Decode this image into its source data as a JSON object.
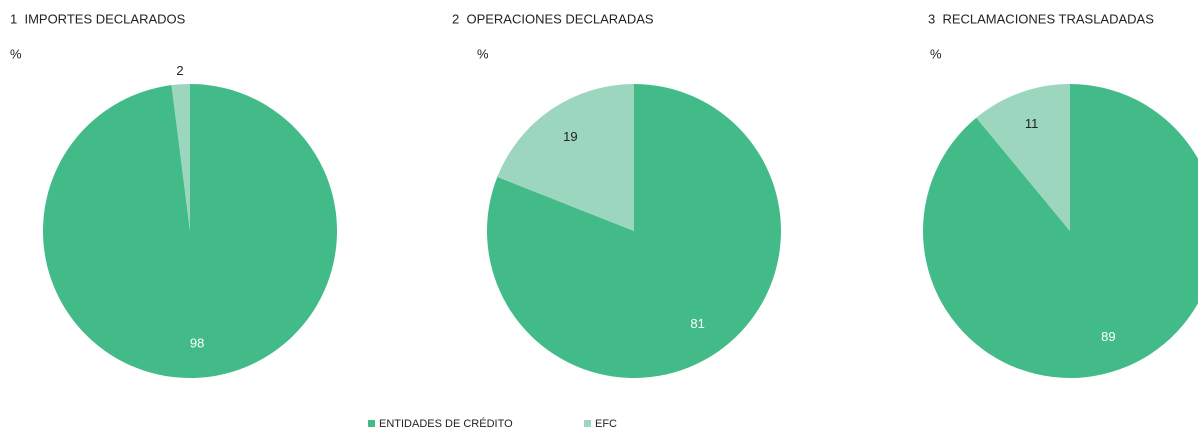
{
  "chart_data": [
    {
      "type": "pie",
      "title": "1  IMPORTES DECLARADOS",
      "unit": "%",
      "values": [
        98,
        2
      ]
    },
    {
      "type": "pie",
      "title": "2  OPERACIONES DECLARADAS",
      "unit": "%",
      "values": [
        81,
        19
      ]
    },
    {
      "type": "pie",
      "title": "3  RECLAMACIONES TRASLADADAS",
      "unit": "%",
      "values": [
        89,
        11
      ]
    }
  ],
  "legend": {
    "labels": [
      "ENTIDADES DE CRÉDITO",
      "EFC"
    ],
    "colors": [
      "#43bb89",
      "#9dd6be"
    ]
  }
}
